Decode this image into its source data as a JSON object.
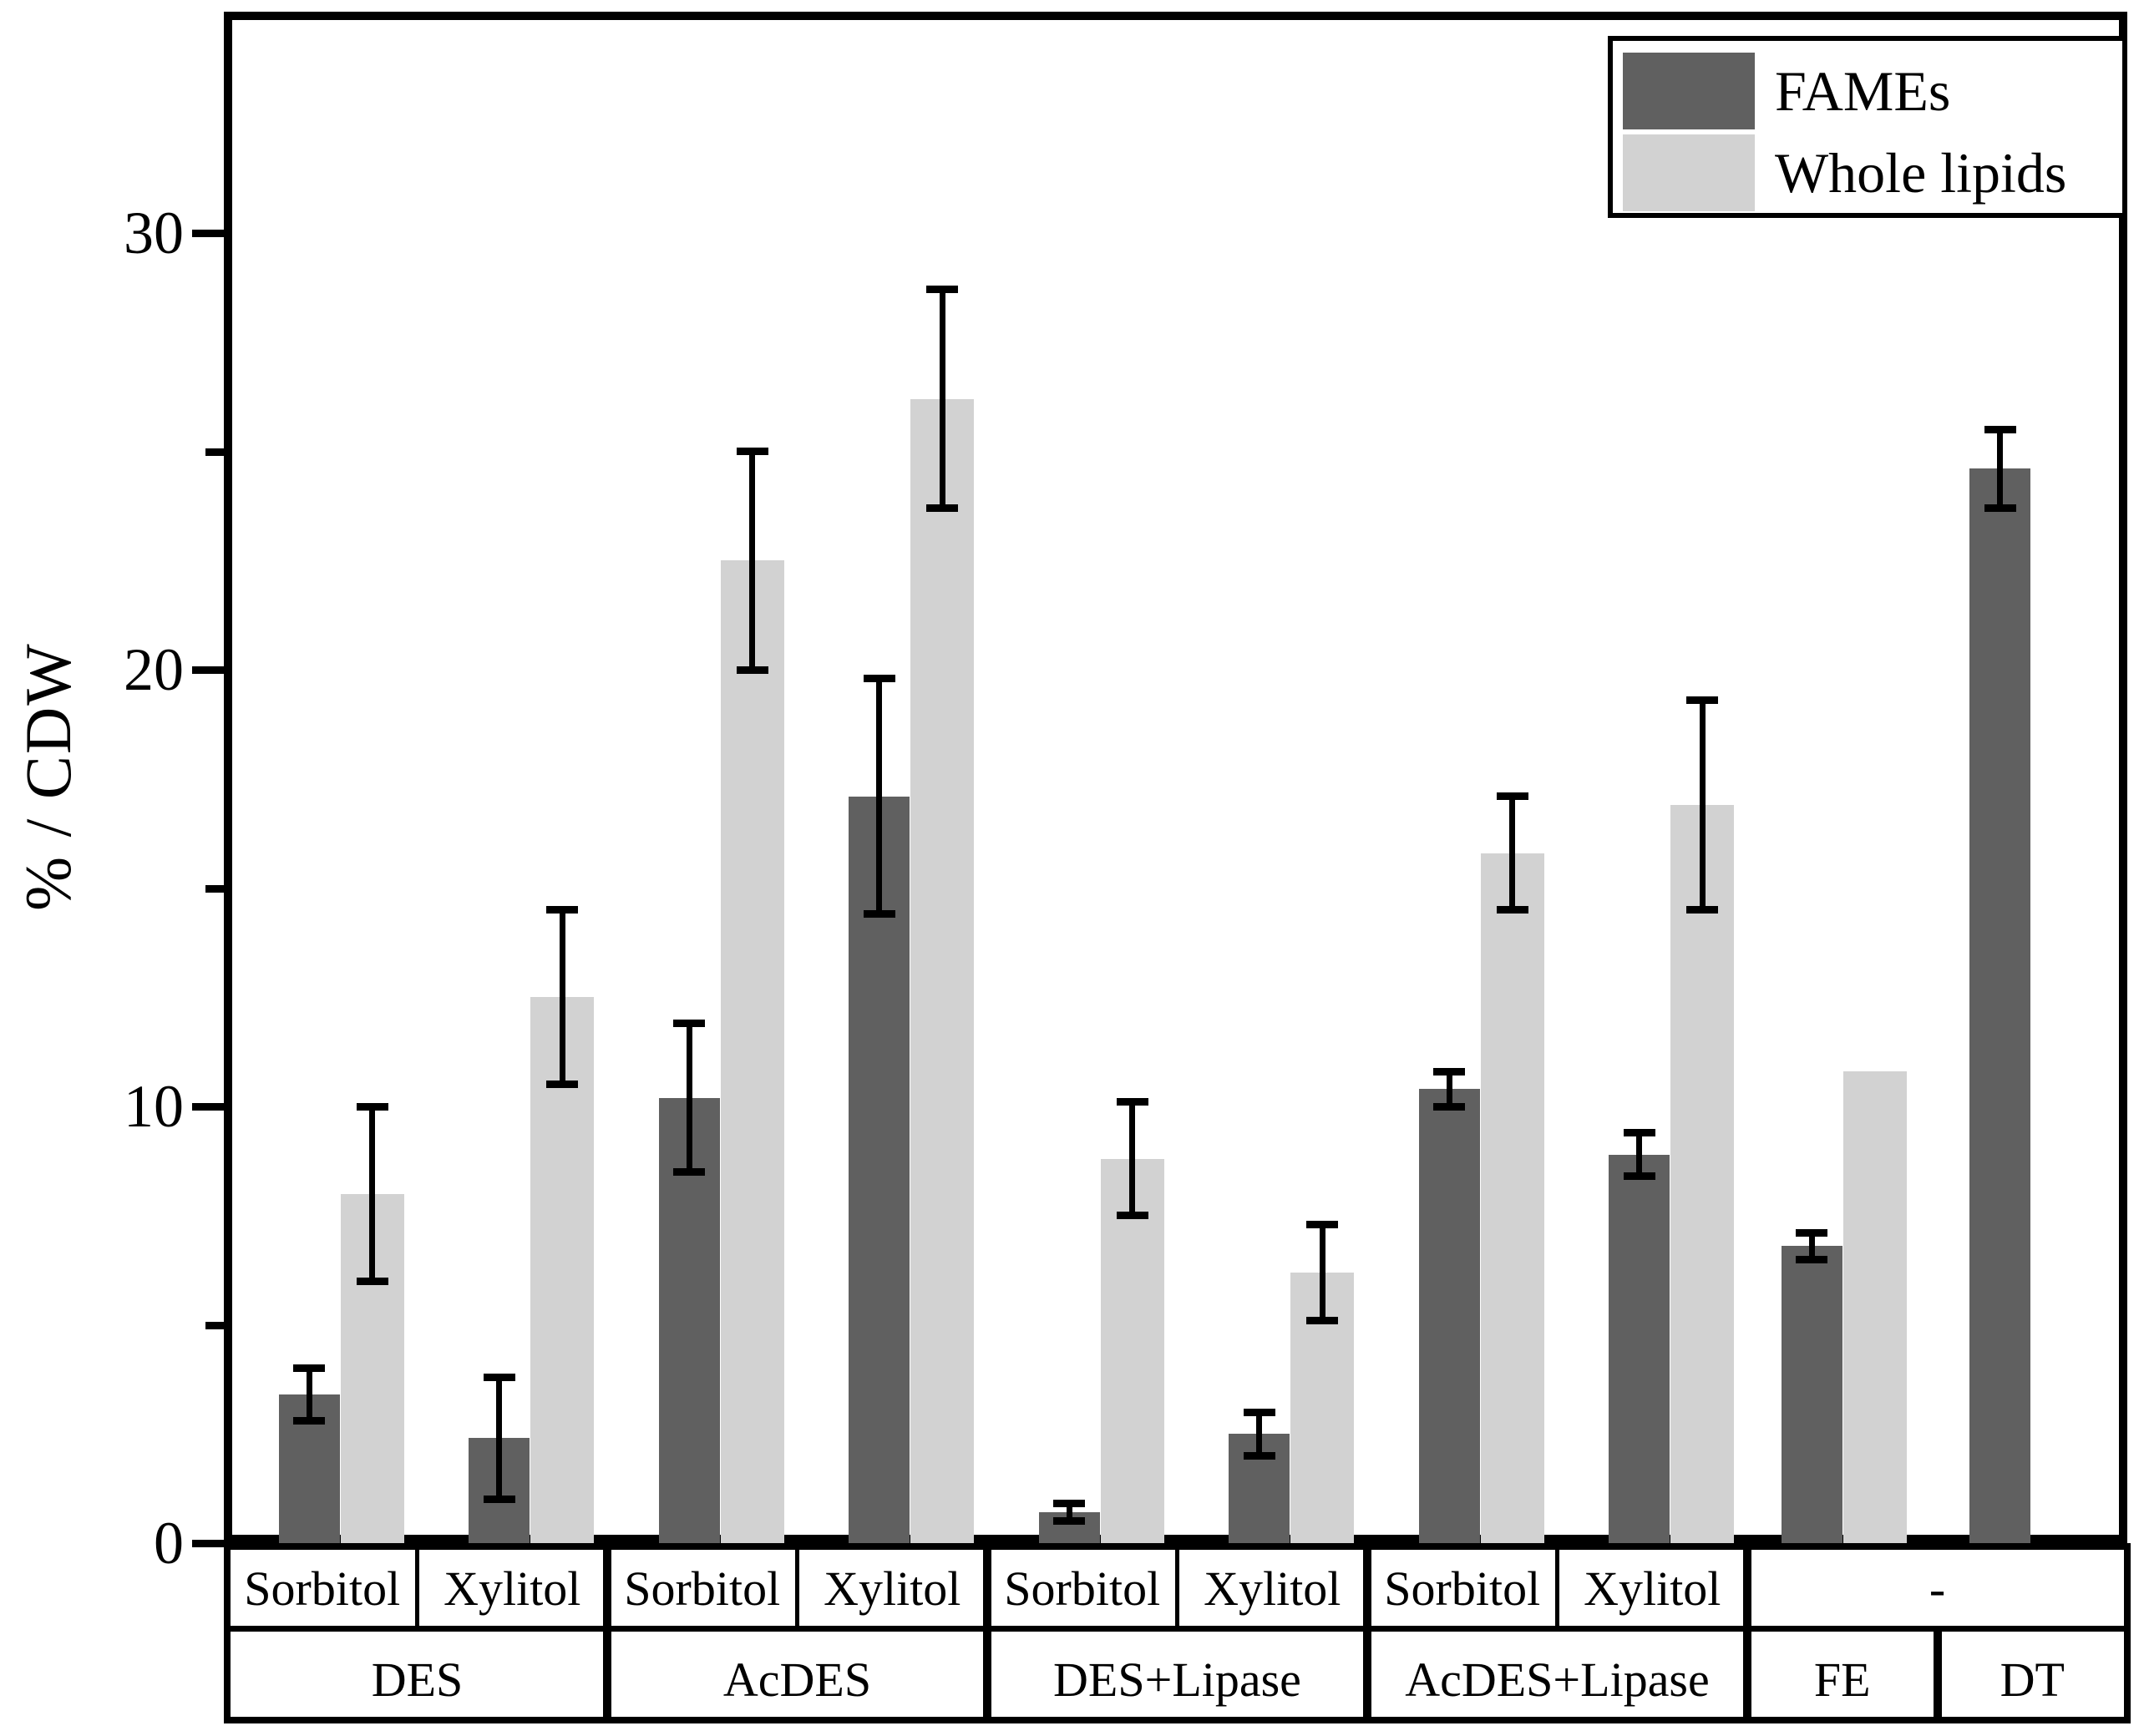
{
  "figure": {
    "background": "#ffffff"
  },
  "y_axis": {
    "label": "% / CDW",
    "tick_labels": [
      "0",
      "10",
      "20",
      "30"
    ]
  },
  "legend": {
    "items": [
      {
        "label": "FAMEs",
        "color": "#606060"
      },
      {
        "label": "Whole lipids",
        "color": "#d2d2d2"
      }
    ]
  },
  "chart_data": {
    "type": "bar",
    "title": "",
    "xlabel": "",
    "ylabel": "% / CDW",
    "ylim": [
      0,
      35
    ],
    "yticks_major": [
      0,
      10,
      20,
      30
    ],
    "yticks_minor": [
      5,
      15,
      25
    ],
    "grid": false,
    "legend_position": "top-right",
    "categories": [
      {
        "group": "DES",
        "sub": "Sorbitol"
      },
      {
        "group": "DES",
        "sub": "Xylitol"
      },
      {
        "group": "AcDES",
        "sub": "Sorbitol"
      },
      {
        "group": "AcDES",
        "sub": "Xylitol"
      },
      {
        "group": "DES+Lipase",
        "sub": "Sorbitol"
      },
      {
        "group": "DES+Lipase",
        "sub": "Xylitol"
      },
      {
        "group": "AcDES+Lipase",
        "sub": "Sorbitol"
      },
      {
        "group": "AcDES+Lipase",
        "sub": "Xylitol"
      },
      {
        "group": "FE",
        "sub": "-"
      },
      {
        "group": "DT",
        "sub": "-"
      }
    ],
    "series": [
      {
        "name": "FAMEs",
        "color": "#606060",
        "values": [
          3.4,
          2.4,
          10.2,
          17.1,
          0.7,
          2.5,
          10.4,
          8.9,
          6.8,
          24.6
        ],
        "errors": [
          0.6,
          1.4,
          1.7,
          2.7,
          0.2,
          0.5,
          0.4,
          0.5,
          0.3,
          0.9
        ]
      },
      {
        "name": "Whole lipids",
        "color": "#d2d2d2",
        "values": [
          8.0,
          12.5,
          22.5,
          26.2,
          8.8,
          6.2,
          15.8,
          16.9,
          10.8,
          null
        ],
        "errors": [
          2.0,
          2.0,
          2.5,
          2.5,
          1.3,
          1.1,
          1.3,
          2.4,
          null,
          null
        ]
      }
    ],
    "axis_table": {
      "row1": [
        {
          "label": "Sorbitol",
          "span": 1
        },
        {
          "label": "Xylitol",
          "span": 1
        },
        {
          "label": "Sorbitol",
          "span": 1
        },
        {
          "label": "Xylitol",
          "span": 1
        },
        {
          "label": "Sorbitol",
          "span": 1
        },
        {
          "label": "Xylitol",
          "span": 1
        },
        {
          "label": "Sorbitol",
          "span": 1
        },
        {
          "label": "Xylitol",
          "span": 1
        },
        {
          "label": "-",
          "span": 2
        }
      ],
      "row2": [
        {
          "label": "DES",
          "span": 2
        },
        {
          "label": "AcDES",
          "span": 2
        },
        {
          "label": "DES+Lipase",
          "span": 2
        },
        {
          "label": "AcDES+Lipase",
          "span": 2
        },
        {
          "label": "FE",
          "span": 1
        },
        {
          "label": "DT",
          "span": 1
        }
      ]
    }
  }
}
